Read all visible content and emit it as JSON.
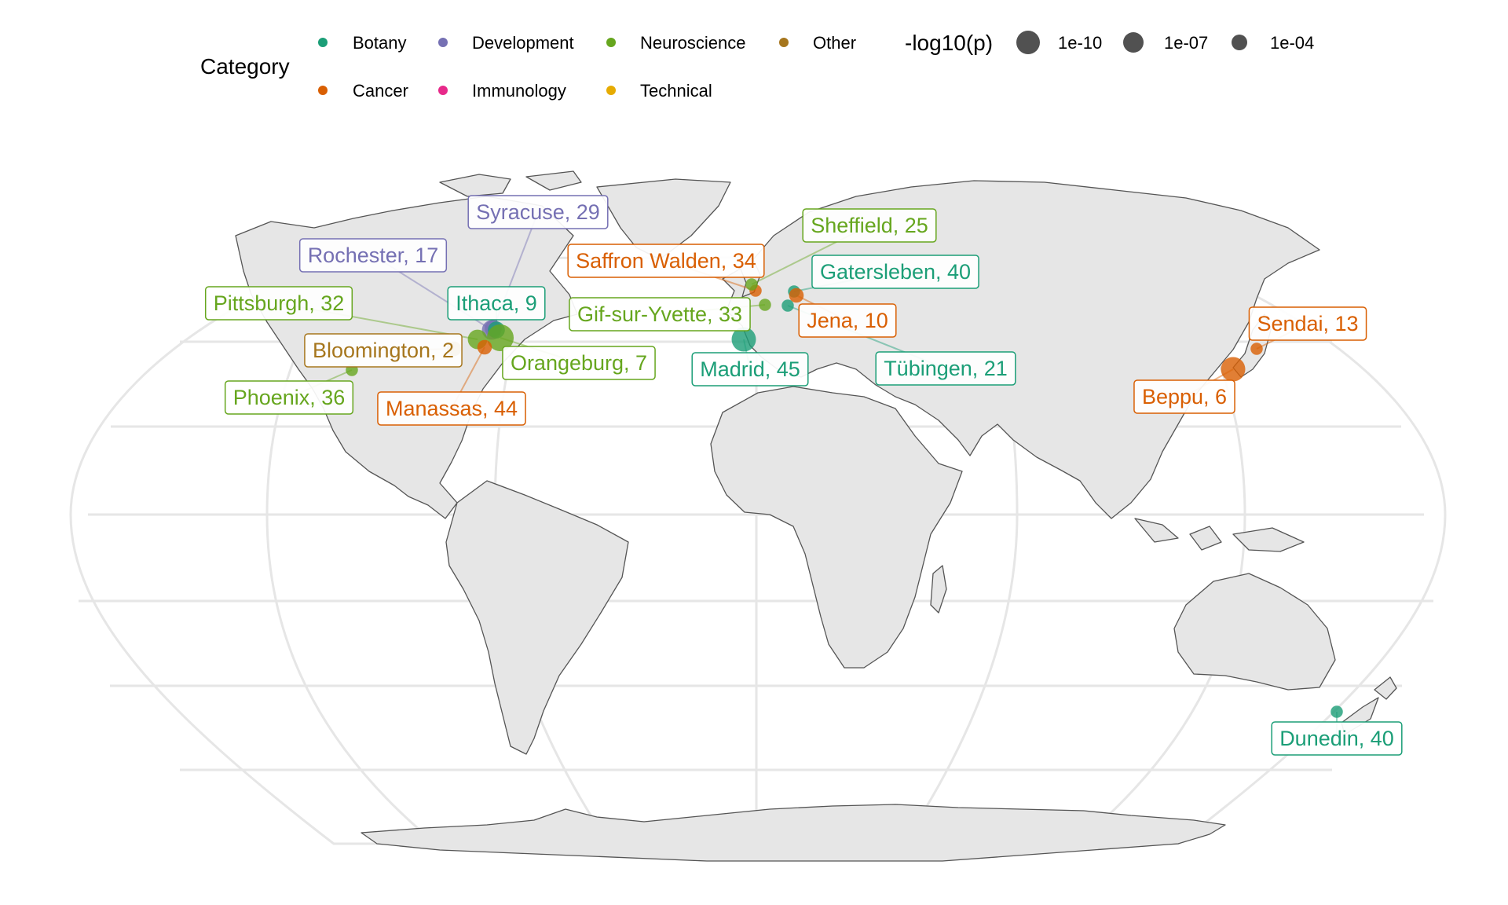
{
  "legend": {
    "category_title": "Category",
    "categories": [
      {
        "name": "Botany",
        "color": "#1b9e77"
      },
      {
        "name": "Development",
        "color": "#7570b3"
      },
      {
        "name": "Neuroscience",
        "color": "#66a61e"
      },
      {
        "name": "Other",
        "color": "#a6761d"
      },
      {
        "name": "Cancer",
        "color": "#d95f02"
      },
      {
        "name": "Immunology",
        "color": "#e7298a"
      },
      {
        "name": "Technical",
        "color": "#e6ab02"
      }
    ],
    "size_title": "-log10(p)",
    "size_items": [
      "1e-10",
      "1e-07",
      "1e-04"
    ]
  },
  "chart_data": {
    "type": "scatter",
    "projection": "Robinson",
    "grid": true,
    "legend_position": "top",
    "points": [
      {
        "label": "Syracuse, 29",
        "category": "Development",
        "lon": -76.15,
        "lat": 43.05,
        "size": 7
      },
      {
        "label": "Rochester, 17",
        "category": "Development",
        "lon": -77.6,
        "lat": 43.16,
        "size": 8
      },
      {
        "label": "Ithaca, 9",
        "category": "Botany",
        "lon": -76.5,
        "lat": 42.44,
        "size": 7
      },
      {
        "label": "Pittsburgh, 32",
        "category": "Neuroscience",
        "lon": -79.99,
        "lat": 40.44,
        "size": 8
      },
      {
        "label": "Orangeburg, 7",
        "category": "Neuroscience",
        "lon": -73.95,
        "lat": 41.05,
        "size": 11
      },
      {
        "label": "Bloomington, 2",
        "category": "Other",
        "lon": -86.53,
        "lat": 39.17,
        "size": 6
      },
      {
        "label": "Manassas, 44",
        "category": "Cancer",
        "lon": -77.47,
        "lat": 38.75,
        "size": 6
      },
      {
        "label": "Phoenix, 36",
        "category": "Neuroscience",
        "lon": -112.07,
        "lat": 33.45,
        "size": 5
      },
      {
        "label": "Saffron Walden, 34",
        "category": "Cancer",
        "lon": 0.24,
        "lat": 52.02,
        "size": 5
      },
      {
        "label": "Sheffield, 25",
        "category": "Neuroscience",
        "lon": -1.47,
        "lat": 53.38,
        "size": 5
      },
      {
        "label": "Gif-sur-Yvette, 33",
        "category": "Neuroscience",
        "lon": 2.13,
        "lat": 48.7,
        "size": 5
      },
      {
        "label": "Gatersleben, 40",
        "category": "Botany",
        "lon": 11.28,
        "lat": 51.82,
        "size": 5
      },
      {
        "label": "Jena, 10",
        "category": "Cancer",
        "lon": 11.59,
        "lat": 50.93,
        "size": 6
      },
      {
        "label": "Tübingen, 21",
        "category": "Botany",
        "lon": 9.06,
        "lat": 48.52,
        "size": 5
      },
      {
        "label": "Madrid, 45",
        "category": "Botany",
        "lon": -3.7,
        "lat": 40.42,
        "size": 10
      },
      {
        "label": "Sendai, 13",
        "category": "Cancer",
        "lon": 140.87,
        "lat": 38.27,
        "size": 5
      },
      {
        "label": "Beppu, 6",
        "category": "Cancer",
        "lon": 131.49,
        "lat": 33.28,
        "size": 10
      },
      {
        "label": "Dunedin, 40",
        "category": "Botany",
        "lon": 170.5,
        "lat": -45.87,
        "size": 5
      }
    ]
  }
}
